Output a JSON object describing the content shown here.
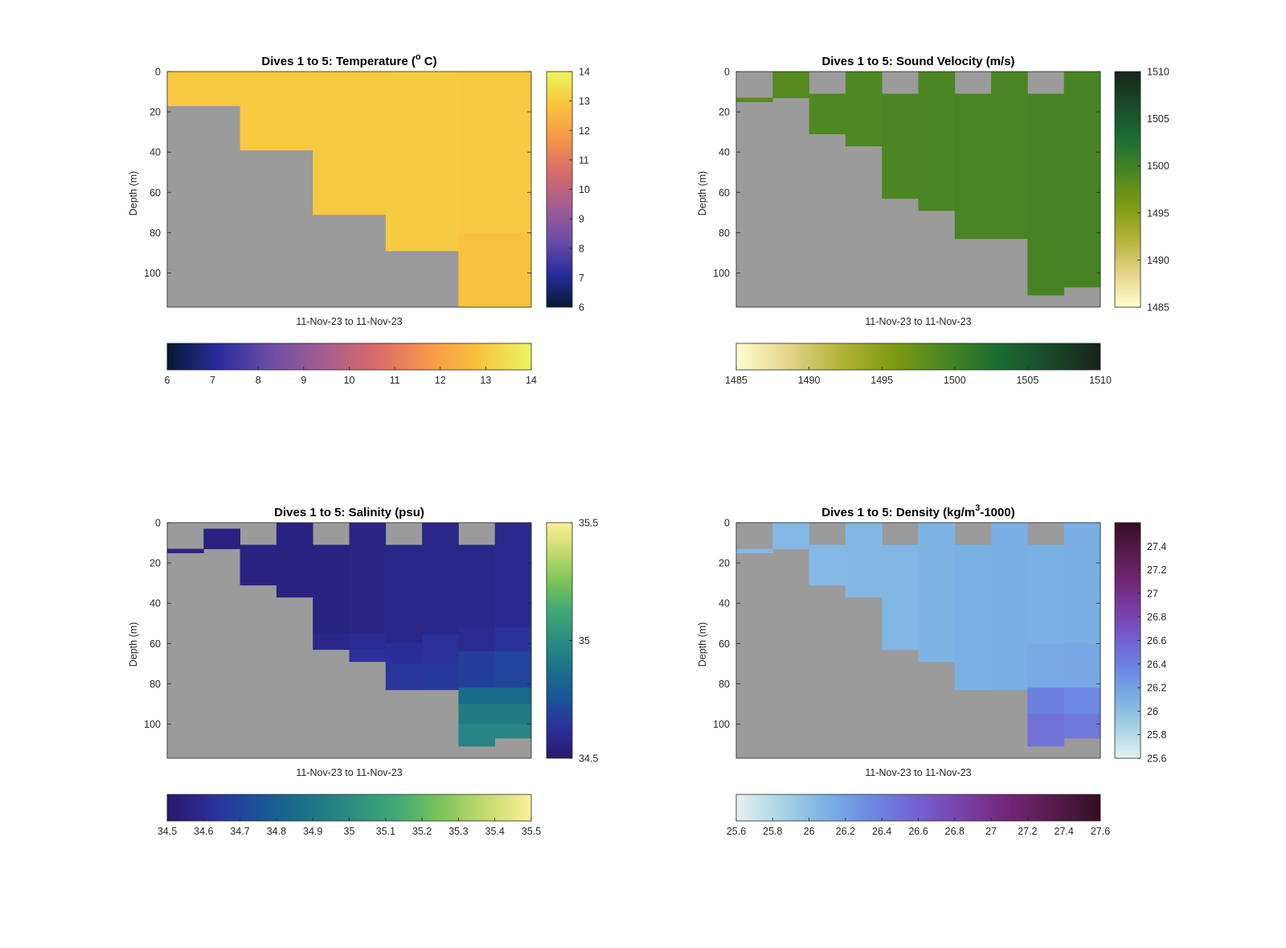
{
  "figure": {
    "background": "#ffffff",
    "no_data_color": "#9b9b9b"
  },
  "chart_data": [
    {
      "type": "heatmap",
      "title": "Dives 1 to 5: Temperature (",
      "title_sup": "o",
      "title_after": " C)",
      "ylabel": "Depth (m)",
      "xlabel": "11-Nov-23 to 11-Nov-23",
      "y_reversed": true,
      "ylim": [
        0,
        117
      ],
      "yticks": [
        0,
        20,
        40,
        60,
        80,
        100
      ],
      "ytick_labels": [
        "0",
        "20",
        "40",
        "60",
        "80",
        "100"
      ],
      "clim": [
        6,
        14
      ],
      "colormap": "thermal",
      "colormap_stops": [
        "#041b31",
        "#2a2c9f",
        "#6c4ea6",
        "#a45d8f",
        "#d86a6a",
        "#f6964a",
        "#f9c33c",
        "#e9f560"
      ],
      "v_colorbar_ticks": [
        6,
        7,
        8,
        9,
        10,
        11,
        12,
        13,
        14
      ],
      "v_colorbar_labels": [
        "6",
        "7",
        "8",
        "9",
        "10",
        "11",
        "12",
        "13",
        "14"
      ],
      "h_colorbar_ticks": [
        6,
        7,
        8,
        9,
        10,
        11,
        12,
        13,
        14
      ],
      "h_colorbar_labels": [
        "6",
        "7",
        "8",
        "9",
        "10",
        "11",
        "12",
        "13",
        "14"
      ],
      "columns": [
        {
          "x_range": [
            0,
            1
          ],
          "segments": [
            [
              0,
              17,
              13.0
            ]
          ]
        },
        {
          "x_range": [
            1,
            2
          ],
          "segments": [
            [
              0,
              39,
              13.0
            ]
          ]
        },
        {
          "x_range": [
            2,
            3
          ],
          "segments": [
            [
              0,
              71,
              13.0
            ]
          ]
        },
        {
          "x_range": [
            3,
            4
          ],
          "segments": [
            [
              0,
              89,
              13.05
            ]
          ]
        },
        {
          "x_range": [
            4,
            5
          ],
          "segments": [
            [
              0,
              80,
              13.0
            ],
            [
              80,
              117,
              12.8
            ]
          ]
        }
      ]
    },
    {
      "type": "heatmap",
      "title": "Dives 1 to 5: Sound Velocity (m/s)",
      "title_sup": "",
      "title_after": "",
      "ylabel": "Depth (m)",
      "xlabel": "11-Nov-23 to 11-Nov-23",
      "y_reversed": true,
      "ylim": [
        0,
        117
      ],
      "yticks": [
        0,
        20,
        40,
        60,
        80,
        100
      ],
      "ytick_labels": [
        "0",
        "20",
        "40",
        "60",
        "80",
        "100"
      ],
      "clim": [
        1485,
        1510
      ],
      "colormap": "speed",
      "colormap_stops": [
        "#fffdcd",
        "#e4d48a",
        "#b4b23a",
        "#7f9a14",
        "#4a8622",
        "#1b6d31",
        "#1a4a2a",
        "#17231a"
      ],
      "v_colorbar_ticks": [
        1485,
        1490,
        1495,
        1500,
        1505,
        1510
      ],
      "v_colorbar_labels": [
        "1485",
        "1490",
        "1495",
        "1500",
        "1505",
        "1510"
      ],
      "h_colorbar_ticks": [
        1485,
        1490,
        1495,
        1500,
        1505,
        1510
      ],
      "h_colorbar_labels": [
        "1485",
        "1490",
        "1495",
        "1500",
        "1505",
        "1510"
      ],
      "columns": [
        {
          "x_range": [
            0,
            0.5
          ],
          "segments": [
            [
              13,
              15,
              1498.5
            ]
          ]
        },
        {
          "x_range": [
            0.5,
            1
          ],
          "segments": [
            [
              0,
              13,
              1498.5
            ]
          ]
        },
        {
          "x_range": [
            1,
            1.5
          ],
          "segments": [
            [
              11,
              31,
              1499.0
            ]
          ]
        },
        {
          "x_range": [
            1.5,
            2
          ],
          "segments": [
            [
              0,
              37,
              1499.0
            ]
          ]
        },
        {
          "x_range": [
            2,
            2.5
          ],
          "segments": [
            [
              11,
              63,
              1499.2
            ]
          ]
        },
        {
          "x_range": [
            2.5,
            3
          ],
          "segments": [
            [
              0,
              69,
              1499.3
            ]
          ]
        },
        {
          "x_range": [
            3,
            3.5
          ],
          "segments": [
            [
              11,
              83,
              1499.4
            ]
          ]
        },
        {
          "x_range": [
            3.5,
            4
          ],
          "segments": [
            [
              0,
              83,
              1499.4
            ]
          ]
        },
        {
          "x_range": [
            4,
            4.5
          ],
          "segments": [
            [
              11,
              111,
              1499.6
            ]
          ]
        },
        {
          "x_range": [
            4.5,
            5
          ],
          "segments": [
            [
              0,
              107,
              1499.6
            ]
          ]
        }
      ]
    },
    {
      "type": "heatmap",
      "title": "Dives 1 to 5: Salinity (psu)",
      "title_sup": "",
      "title_after": "",
      "ylabel": "Depth (m)",
      "xlabel": "11-Nov-23 to 11-Nov-23",
      "y_reversed": true,
      "ylim": [
        0,
        117
      ],
      "yticks": [
        0,
        20,
        40,
        60,
        80,
        100
      ],
      "ytick_labels": [
        "0",
        "20",
        "40",
        "60",
        "80",
        "100"
      ],
      "clim": [
        34.5,
        35.5
      ],
      "colormap": "haline",
      "colormap_stops": [
        "#2a186c",
        "#2c2f9a",
        "#18539a",
        "#1b7089",
        "#2b8c82",
        "#40a874",
        "#7ac45a",
        "#c4db6e",
        "#fdef9a"
      ],
      "v_colorbar_ticks": [
        34.5,
        35,
        35.5
      ],
      "v_colorbar_labels": [
        "34.5",
        "35",
        "35.5"
      ],
      "h_colorbar_ticks": [
        34.5,
        34.6,
        34.7,
        34.8,
        34.9,
        35,
        35.1,
        35.2,
        35.3,
        35.4,
        35.5
      ],
      "h_colorbar_labels": [
        "34.5",
        "34.6",
        "34.7",
        "34.8",
        "34.9",
        "35",
        "35.1",
        "35.2",
        "35.3",
        "35.4",
        "35.5"
      ],
      "columns": [
        {
          "x_range": [
            0,
            0.5
          ],
          "segments": [
            [
              13,
              15,
              34.55
            ]
          ]
        },
        {
          "x_range": [
            0.5,
            1
          ],
          "segments": [
            [
              3,
              13,
              34.55
            ]
          ]
        },
        {
          "x_range": [
            1,
            1.5
          ],
          "segments": [
            [
              11,
              31,
              34.56
            ]
          ]
        },
        {
          "x_range": [
            1.5,
            2
          ],
          "segments": [
            [
              0,
              37,
              34.56
            ]
          ]
        },
        {
          "x_range": [
            2,
            2.5
          ],
          "segments": [
            [
              11,
              55,
              34.56
            ],
            [
              55,
              63,
              34.58
            ]
          ]
        },
        {
          "x_range": [
            2.5,
            3
          ],
          "segments": [
            [
              0,
              55,
              34.57
            ],
            [
              55,
              63,
              34.6
            ],
            [
              63,
              69,
              34.63
            ]
          ]
        },
        {
          "x_range": [
            3,
            3.5
          ],
          "segments": [
            [
              11,
              60,
              34.58
            ],
            [
              60,
              70,
              34.62
            ],
            [
              70,
              83,
              34.65
            ]
          ]
        },
        {
          "x_range": [
            3.5,
            4
          ],
          "segments": [
            [
              0,
              55,
              34.58
            ],
            [
              55,
              70,
              34.63
            ],
            [
              70,
              83,
              34.66
            ]
          ]
        },
        {
          "x_range": [
            4,
            4.5
          ],
          "segments": [
            [
              11,
              52,
              34.58
            ],
            [
              52,
              64,
              34.6
            ],
            [
              64,
              82,
              34.68
            ],
            [
              82,
              90,
              34.85
            ],
            [
              90,
              100,
              34.92
            ],
            [
              100,
              111,
              34.97
            ]
          ]
        },
        {
          "x_range": [
            4.5,
            5
          ],
          "segments": [
            [
              0,
              52,
              34.59
            ],
            [
              52,
              64,
              34.64
            ],
            [
              64,
              82,
              34.7
            ],
            [
              82,
              90,
              34.85
            ],
            [
              90,
              100,
              34.92
            ],
            [
              100,
              107,
              34.97
            ]
          ]
        }
      ]
    },
    {
      "type": "heatmap",
      "title": "Dives 1 to 5: Density (kg/m",
      "title_sup": "3",
      "title_after": "-1000)",
      "ylabel": "Depth (m)",
      "xlabel": "11-Nov-23 to 11-Nov-23",
      "y_reversed": true,
      "ylim": [
        0,
        117
      ],
      "yticks": [
        0,
        20,
        40,
        60,
        80,
        100
      ],
      "ytick_labels": [
        "0",
        "20",
        "40",
        "60",
        "80",
        "100"
      ],
      "clim": [
        25.6,
        27.6
      ],
      "colormap": "dense",
      "colormap_stops": [
        "#e6f1f1",
        "#a9d4e4",
        "#7ab1e4",
        "#6c88e2",
        "#7361d0",
        "#7a3fa8",
        "#712575",
        "#561a4b",
        "#360e24"
      ],
      "v_colorbar_ticks": [
        25.6,
        25.8,
        26,
        26.2,
        26.4,
        26.6,
        26.8,
        27,
        27.2,
        27.4
      ],
      "v_colorbar_labels": [
        "25.6",
        "25.8",
        "26",
        "26.2",
        "26.4",
        "26.6",
        "26.8",
        "27",
        "27.2",
        "27.4"
      ],
      "h_colorbar_ticks": [
        25.6,
        25.8,
        26,
        26.2,
        26.4,
        26.6,
        26.8,
        27,
        27.2,
        27.4,
        27.6
      ],
      "h_colorbar_labels": [
        "25.6",
        "25.8",
        "26",
        "26.2",
        "26.4",
        "26.6",
        "26.8",
        "27",
        "27.2",
        "27.4",
        "27.6"
      ],
      "columns": [
        {
          "x_range": [
            0,
            0.5
          ],
          "segments": [
            [
              13,
              15,
              26.05
            ]
          ]
        },
        {
          "x_range": [
            0.5,
            1
          ],
          "segments": [
            [
              0,
              13,
              26.05
            ]
          ]
        },
        {
          "x_range": [
            1,
            1.5
          ],
          "segments": [
            [
              11,
              31,
              26.05
            ]
          ]
        },
        {
          "x_range": [
            1.5,
            2
          ],
          "segments": [
            [
              0,
              37,
              26.06
            ]
          ]
        },
        {
          "x_range": [
            2,
            2.5
          ],
          "segments": [
            [
              11,
              63,
              26.07
            ]
          ]
        },
        {
          "x_range": [
            2.5,
            3
          ],
          "segments": [
            [
              0,
              69,
              26.08
            ]
          ]
        },
        {
          "x_range": [
            3,
            3.5
          ],
          "segments": [
            [
              11,
              83,
              26.1
            ]
          ]
        },
        {
          "x_range": [
            3.5,
            4
          ],
          "segments": [
            [
              0,
              83,
              26.11
            ]
          ]
        },
        {
          "x_range": [
            4,
            4.5
          ],
          "segments": [
            [
              11,
              60,
              26.1
            ],
            [
              60,
              82,
              26.15
            ],
            [
              82,
              95,
              26.4
            ],
            [
              95,
              111,
              26.5
            ]
          ]
        },
        {
          "x_range": [
            4.5,
            5
          ],
          "segments": [
            [
              0,
              60,
              26.11
            ],
            [
              60,
              82,
              26.16
            ],
            [
              82,
              95,
              26.35
            ],
            [
              95,
              107,
              26.45
            ]
          ]
        }
      ]
    }
  ]
}
